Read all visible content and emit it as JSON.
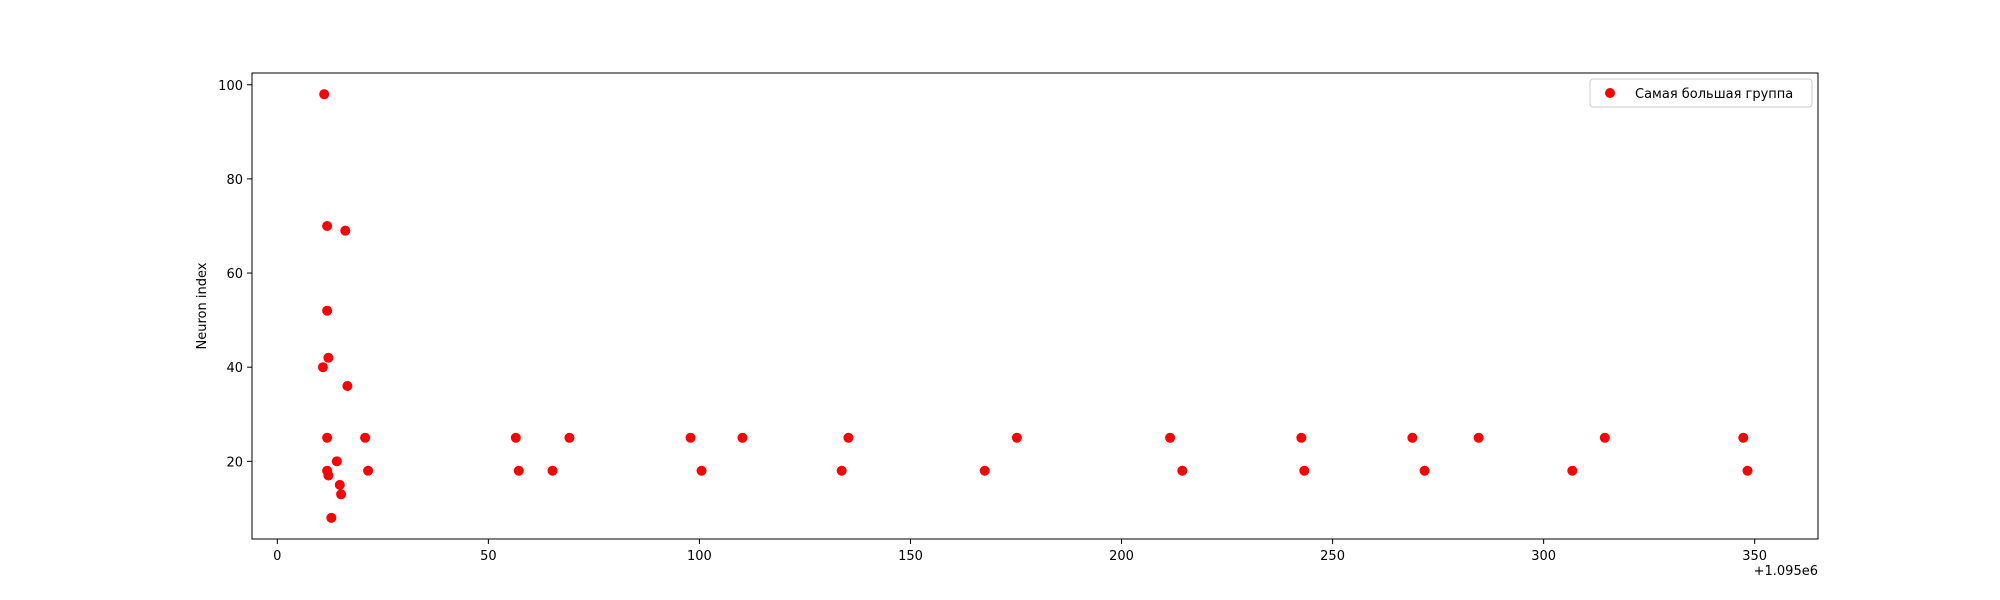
{
  "chart_data": {
    "type": "scatter",
    "title": "",
    "xlabel": "",
    "ylabel": "Neuron index",
    "x_offset_label": "+1.095e6",
    "xlim": [
      -6,
      365
    ],
    "ylim": [
      3.5,
      102.5
    ],
    "x_ticks": [
      "0",
      "50",
      "100",
      "150",
      "200",
      "250",
      "300",
      "350"
    ],
    "y_ticks": [
      "20",
      "40",
      "60",
      "80",
      "100"
    ],
    "grid": false,
    "legend_position": "top-right",
    "series": [
      {
        "name": "Самая большая группа",
        "color": "#ff0000",
        "marker": "circle",
        "points": [
          [
            11.1,
            98
          ],
          [
            11.8,
            70
          ],
          [
            16.1,
            69
          ],
          [
            11.8,
            52
          ],
          [
            12.1,
            42
          ],
          [
            10.8,
            40
          ],
          [
            16.6,
            36
          ],
          [
            11.8,
            25
          ],
          [
            20.8,
            25
          ],
          [
            14.1,
            20
          ],
          [
            11.8,
            18
          ],
          [
            21.5,
            18
          ],
          [
            12.1,
            17
          ],
          [
            14.8,
            15
          ],
          [
            15.1,
            13
          ],
          [
            12.8,
            8
          ],
          [
            56.5,
            25
          ],
          [
            57.2,
            18
          ],
          [
            65.2,
            18
          ],
          [
            69.2,
            25
          ],
          [
            97.9,
            25
          ],
          [
            100.5,
            18
          ],
          [
            110.2,
            25
          ],
          [
            133.7,
            18
          ],
          [
            135.3,
            25
          ],
          [
            167.6,
            18
          ],
          [
            175.2,
            25
          ],
          [
            211.5,
            25
          ],
          [
            214.4,
            18
          ],
          [
            242.6,
            25
          ],
          [
            243.3,
            18
          ],
          [
            268.9,
            25
          ],
          [
            271.8,
            18
          ],
          [
            284.6,
            25
          ],
          [
            306.8,
            18
          ],
          [
            314.5,
            25
          ],
          [
            347.3,
            25
          ],
          [
            348.3,
            18
          ]
        ]
      }
    ]
  }
}
